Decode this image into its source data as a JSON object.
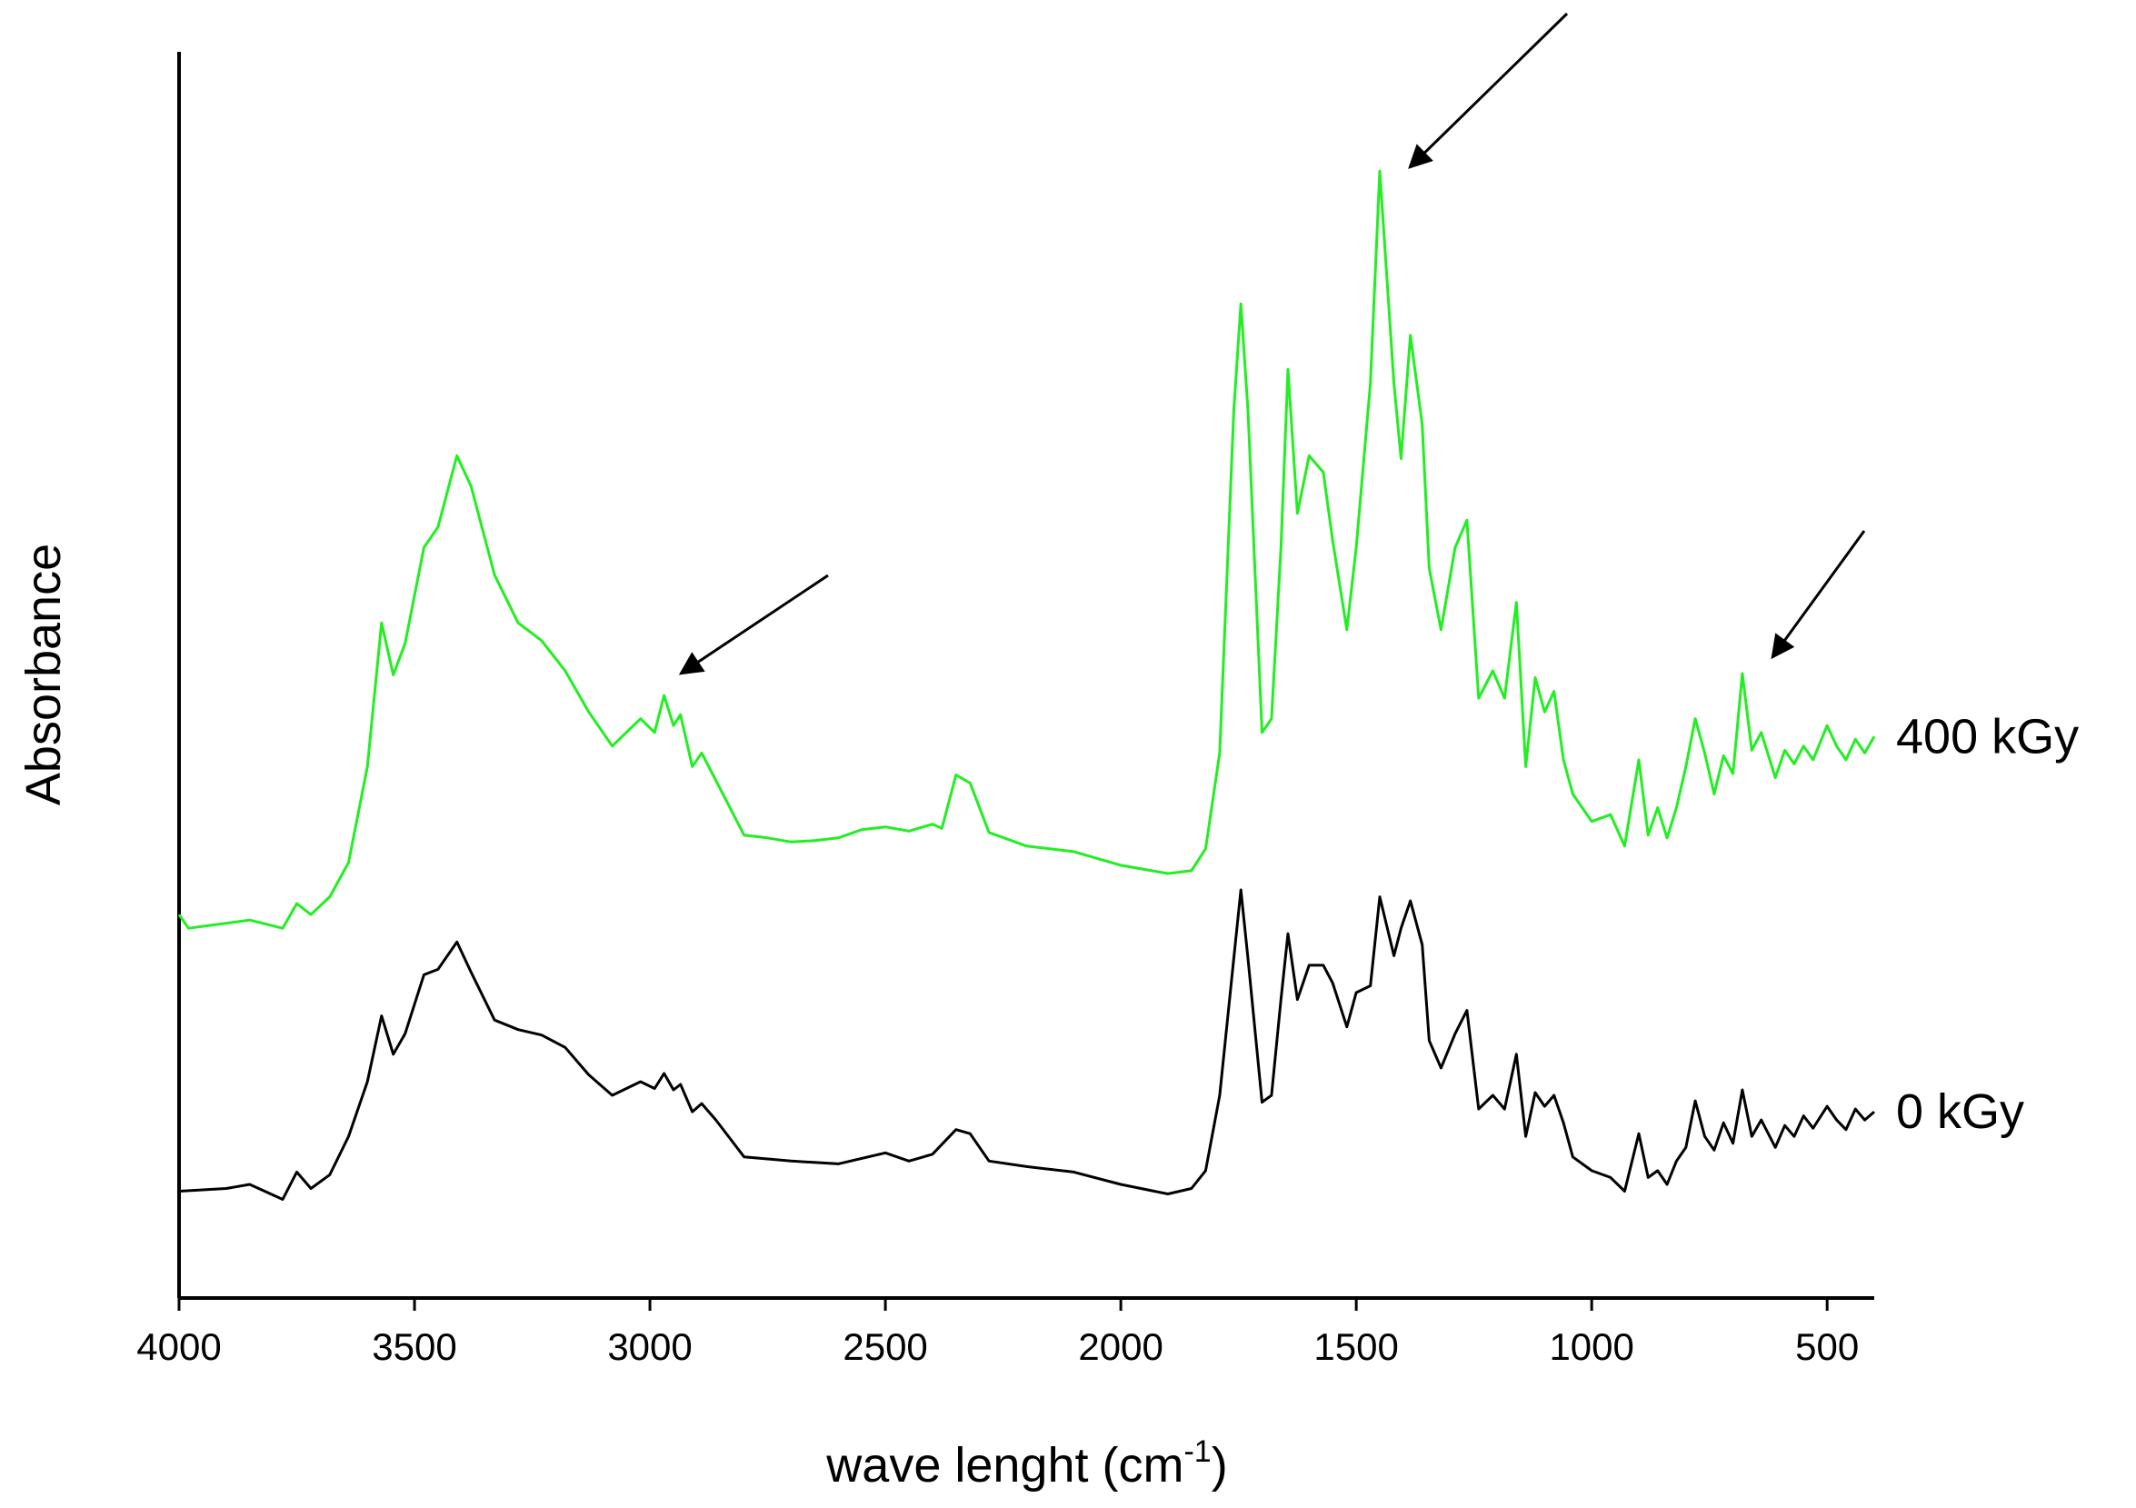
{
  "chart_data": {
    "type": "line",
    "x_label": {
      "text": "wave lenght (cm",
      "superscript": "-1",
      "suffix": ")"
    },
    "y_label": "Absorbance",
    "xlim": [
      4000,
      400
    ],
    "xticks": [
      4000,
      3500,
      3000,
      2500,
      2000,
      1500,
      1000,
      500
    ],
    "ylim": [
      0,
      910
    ],
    "series": [
      {
        "name": "400 kGy",
        "color": "#22ee22",
        "x": [
          4000,
          3980,
          3850,
          3780,
          3750,
          3720,
          3680,
          3640,
          3600,
          3570,
          3545,
          3520,
          3480,
          3450,
          3410,
          3380,
          3330,
          3280,
          3230,
          3180,
          3130,
          3080,
          3020,
          2990,
          2970,
          2950,
          2935,
          2910,
          2890,
          2860,
          2800,
          2750,
          2700,
          2650,
          2600,
          2550,
          2500,
          2450,
          2400,
          2380,
          2350,
          2320,
          2280,
          2200,
          2100,
          2000,
          1900,
          1850,
          1820,
          1790,
          1760,
          1745,
          1730,
          1700,
          1680,
          1660,
          1645,
          1625,
          1600,
          1570,
          1550,
          1520,
          1500,
          1470,
          1450,
          1420,
          1405,
          1385,
          1360,
          1345,
          1320,
          1290,
          1265,
          1240,
          1210,
          1185,
          1160,
          1140,
          1120,
          1100,
          1080,
          1060,
          1040,
          1000,
          960,
          930,
          900,
          880,
          860,
          840,
          820,
          800,
          780,
          760,
          740,
          720,
          700,
          680,
          660,
          640,
          610,
          590,
          570,
          550,
          530,
          500,
          480,
          460,
          440,
          420,
          400
        ],
        "values": [
          280,
          270,
          276,
          270,
          288,
          280,
          293,
          318,
          388,
          493,
          455,
          478,
          548,
          563,
          615,
          593,
          528,
          493,
          480,
          458,
          428,
          403,
          423,
          413,
          440,
          418,
          426,
          388,
          398,
          378,
          338,
          336,
          333,
          334,
          336,
          342,
          344,
          341,
          346,
          343,
          382,
          376,
          340,
          330,
          326,
          316,
          310,
          312,
          328,
          398,
          648,
          726,
          648,
          413,
          423,
          548,
          678,
          573,
          615,
          603,
          553,
          488,
          548,
          668,
          823,
          668,
          613,
          703,
          638,
          533,
          488,
          548,
          568,
          438,
          458,
          438,
          508,
          388,
          453,
          428,
          443,
          393,
          368,
          348,
          353,
          330,
          393,
          338,
          358,
          336,
          358,
          388,
          423,
          398,
          368,
          396,
          383,
          456,
          400,
          413,
          380,
          400,
          390,
          403,
          393,
          418,
          403,
          393,
          408,
          398,
          410
        ]
      },
      {
        "name": "0 kGy",
        "color": "#000000",
        "x": [
          4000,
          3900,
          3850,
          3780,
          3750,
          3720,
          3680,
          3640,
          3600,
          3570,
          3545,
          3520,
          3480,
          3450,
          3410,
          3380,
          3330,
          3280,
          3230,
          3180,
          3130,
          3080,
          3020,
          2990,
          2970,
          2950,
          2935,
          2910,
          2890,
          2860,
          2800,
          2700,
          2600,
          2500,
          2450,
          2400,
          2350,
          2320,
          2280,
          2200,
          2100,
          2000,
          1900,
          1850,
          1820,
          1790,
          1760,
          1745,
          1730,
          1700,
          1680,
          1660,
          1645,
          1625,
          1600,
          1570,
          1550,
          1520,
          1500,
          1470,
          1450,
          1420,
          1405,
          1385,
          1360,
          1345,
          1320,
          1290,
          1265,
          1240,
          1210,
          1185,
          1160,
          1140,
          1120,
          1100,
          1080,
          1060,
          1040,
          1000,
          960,
          930,
          900,
          880,
          860,
          840,
          820,
          800,
          780,
          760,
          740,
          720,
          700,
          680,
          660,
          640,
          610,
          590,
          570,
          550,
          530,
          500,
          480,
          460,
          440,
          420,
          400
        ],
        "values": [
          78,
          80,
          83,
          72,
          92,
          80,
          90,
          118,
          158,
          206,
          178,
          193,
          236,
          240,
          260,
          238,
          203,
          196,
          192,
          183,
          163,
          148,
          158,
          153,
          164,
          152,
          156,
          136,
          142,
          130,
          103,
          100,
          98,
          106,
          100,
          105,
          123,
          120,
          100,
          96,
          92,
          83,
          76,
          80,
          93,
          148,
          248,
          298,
          248,
          143,
          148,
          218,
          266,
          218,
          243,
          243,
          230,
          198,
          223,
          228,
          293,
          250,
          270,
          290,
          258,
          188,
          168,
          193,
          210,
          138,
          148,
          138,
          178,
          118,
          150,
          140,
          148,
          128,
          103,
          93,
          88,
          78,
          120,
          88,
          93,
          83,
          100,
          110,
          144,
          118,
          108,
          128,
          113,
          152,
          118,
          130,
          110,
          126,
          118,
          133,
          124,
          140,
          130,
          123,
          138,
          130,
          136
        ]
      }
    ]
  }
}
